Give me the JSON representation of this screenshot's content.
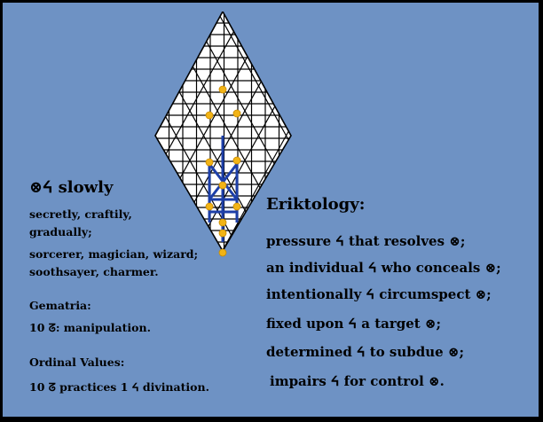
{
  "left_panel": {
    "heading": "⊗ᔦ slowly",
    "meanings": [
      "secretly, craftily,",
      "gradually;",
      "sorcerer, magician, wizard;",
      "soothsayer, charmer."
    ],
    "gematria_label": "Gematria:",
    "gematria_value": "10 ᘔ: manipulation.",
    "ordinal_label": "Ordinal Values:",
    "ordinal_value": "10 ᘔ practices 1 ᔦ divination."
  },
  "right_panel": {
    "title": "Eriktology:",
    "lines": [
      "pressure ᔦ that resolves ⊗;",
      "an individual ᔦ who conceals ⊗;",
      "intentionally ᔦ circumspect ⊗;",
      "fixed upon ᔦ a target ⊗;",
      "determined ᔦ to subdue ⊗;",
      "impairs ᔦ for control ⊗."
    ]
  },
  "colors": {
    "background": "#6e92c4",
    "frame": "#000000",
    "grid_fill": "#ffffff",
    "node": "#f2b416",
    "glyph": "#1d3fa8"
  }
}
